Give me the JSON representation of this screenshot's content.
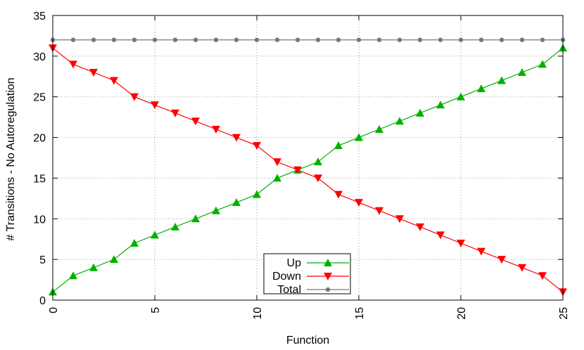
{
  "chart_data": {
    "type": "line",
    "title": "",
    "xlabel": "Function",
    "ylabel": "# Transitions - No Autoregulation",
    "xlim": [
      0,
      25
    ],
    "ylim": [
      0,
      35
    ],
    "xticks": [
      0,
      5,
      10,
      15,
      20,
      25
    ],
    "yticks": [
      0,
      5,
      10,
      15,
      20,
      25,
      30,
      35
    ],
    "grid": true,
    "legend_position": "bottom-center",
    "x": [
      0,
      1,
      2,
      3,
      4,
      5,
      6,
      7,
      8,
      9,
      10,
      11,
      12,
      13,
      14,
      15,
      16,
      17,
      18,
      19,
      20,
      21,
      22,
      23,
      24,
      25
    ],
    "series": [
      {
        "name": "Up",
        "color": "#00b000",
        "marker": "triangle-up",
        "values": [
          1,
          3,
          4,
          5,
          7,
          8,
          9,
          10,
          11,
          12,
          13,
          15,
          16,
          17,
          19,
          20,
          21,
          22,
          23,
          24,
          25,
          26,
          27,
          28,
          29,
          31
        ]
      },
      {
        "name": "Down",
        "color": "#ff0000",
        "marker": "triangle-down",
        "values": [
          31,
          29,
          28,
          27,
          25,
          24,
          23,
          22,
          21,
          20,
          19,
          17,
          16,
          15,
          13,
          12,
          11,
          10,
          9,
          8,
          7,
          6,
          5,
          4,
          3,
          1
        ]
      },
      {
        "name": "Total",
        "color": "#777777",
        "marker": "circle",
        "values": [
          32,
          32,
          32,
          32,
          32,
          32,
          32,
          32,
          32,
          32,
          32,
          32,
          32,
          32,
          32,
          32,
          32,
          32,
          32,
          32,
          32,
          32,
          32,
          32,
          32,
          32
        ]
      }
    ]
  }
}
